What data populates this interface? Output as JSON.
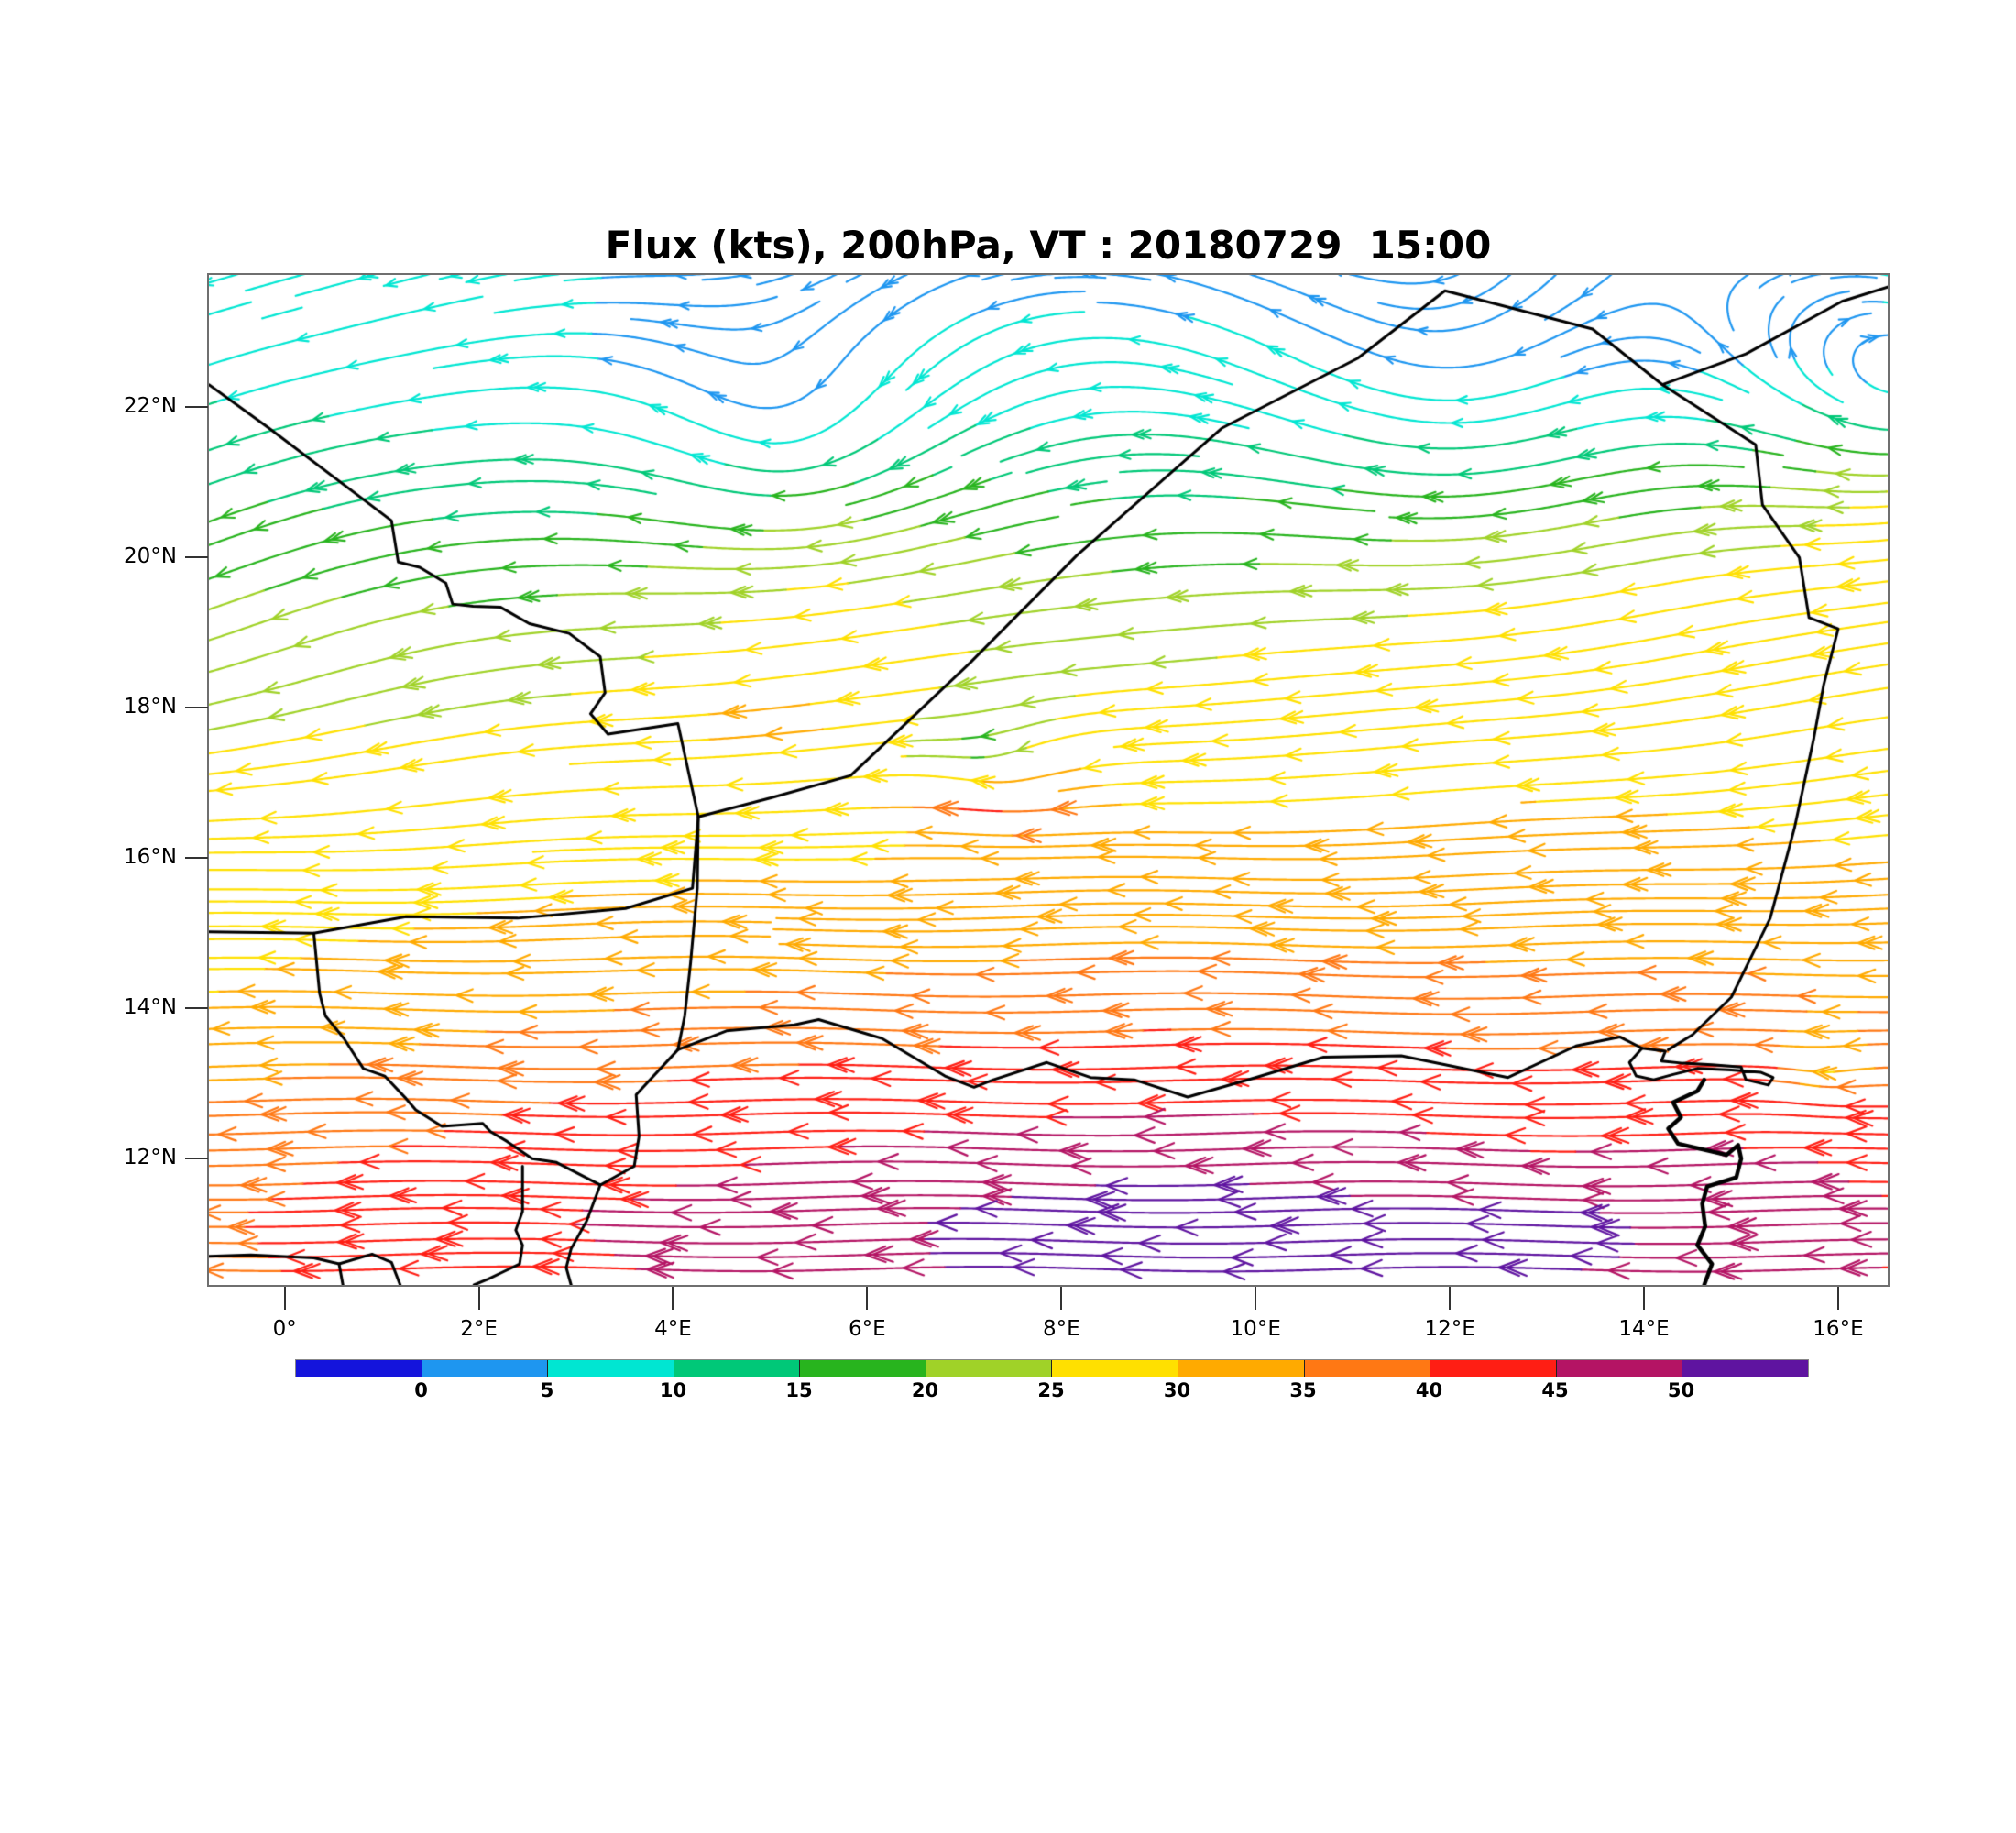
{
  "title": "Flux (kts), 200hPa, VT : 20180729  15:00",
  "chart_data": {
    "type": "streamline-map",
    "variable": "Flux",
    "units": "kts",
    "pressure_level": "200hPa",
    "valid_time": "20180729  15:00",
    "x_axis": {
      "range_lon": [
        -0.78,
        16.51
      ],
      "ticks": [
        {
          "label": "0°",
          "lon": 0
        },
        {
          "label": "2°E",
          "lon": 2
        },
        {
          "label": "4°E",
          "lon": 4
        },
        {
          "label": "6°E",
          "lon": 6
        },
        {
          "label": "8°E",
          "lon": 8
        },
        {
          "label": "10°E",
          "lon": 10
        },
        {
          "label": "12°E",
          "lon": 12
        },
        {
          "label": "14°E",
          "lon": 14
        },
        {
          "label": "16°E",
          "lon": 16
        }
      ]
    },
    "y_axis": {
      "range_lat": [
        10.32,
        23.76
      ],
      "ticks": [
        {
          "label": "12°N",
          "lat": 12
        },
        {
          "label": "14°N",
          "lat": 14
        },
        {
          "label": "16°N",
          "lat": 16
        },
        {
          "label": "18°N",
          "lat": 18
        },
        {
          "label": "20°N",
          "lat": 20
        },
        {
          "label": "22°N",
          "lat": 22
        }
      ]
    },
    "colorbar": {
      "tick_labels": [
        "0",
        "5",
        "10",
        "15",
        "20",
        "25",
        "30",
        "35",
        "40",
        "45",
        "50"
      ],
      "levels": [
        0,
        5,
        10,
        15,
        20,
        25,
        30,
        35,
        40,
        45,
        50
      ],
      "colors": [
        "#1414dc",
        "#1e96f0",
        "#00e6d2",
        "#00c878",
        "#28b41e",
        "#a0d228",
        "#ffe000",
        "#ffaa00",
        "#ff7814",
        "#ff1e14",
        "#b41464",
        "#5f14a0"
      ]
    },
    "flow_field": {
      "description": "Tropical easterly jet: westward flow strongest (40-55 kts, red/purple) along 10.5-12.5N, weakening northward to light blue/cyan (0-10 kts) near 21-24N; anticyclonic eddies over the Sahara and a small convergent eddy near 7.4E/17.1N and near Lake Chad.",
      "base_speed_profile": [
        [
          10.32,
          46
        ],
        [
          11.2,
          47
        ],
        [
          12,
          45
        ],
        [
          13,
          41
        ],
        [
          14,
          36
        ],
        [
          15,
          32
        ],
        [
          16,
          29
        ],
        [
          17,
          26
        ],
        [
          17.8,
          24
        ],
        [
          18.6,
          22
        ],
        [
          19.4,
          19
        ],
        [
          20.2,
          16
        ],
        [
          21,
          13
        ],
        [
          21.8,
          10
        ],
        [
          22.6,
          8
        ],
        [
          23.76,
          7
        ]
      ],
      "lon_speed_factor": [
        [
          -0.78,
          0.84
        ],
        [
          1,
          0.9
        ],
        [
          3,
          0.96
        ],
        [
          5,
          1.0
        ],
        [
          7,
          1.04
        ],
        [
          9,
          1.06
        ],
        [
          11,
          1.04
        ],
        [
          13,
          1.0
        ],
        [
          14.5,
          1.02
        ],
        [
          16.51,
          0.97
        ]
      ],
      "lon_factor_blend": {
        "full_below_lat": 14,
        "none_above_lat": 17
      },
      "southward_tilt": {
        "base_coeff": 0.1,
        "base_start_lat": 14.5,
        "base_full_lat": 18.5,
        "extra_coeff": 0.32,
        "extra_start_lat": 16,
        "extra_full_lat": 19,
        "west_weight_min": 0.4,
        "west_zero_lon": 6.5,
        "west_scale": 7
      },
      "waviness": {
        "amp": 0.04,
        "k_lon": 1.3,
        "k_lat": 0.9
      },
      "vortices": [
        {
          "lon": 5.3,
          "lat": 21.0,
          "rotation": "clockwise",
          "strength": 6.5,
          "core_radius": 1.3,
          "convergence": 0.15
        },
        {
          "lon": 12.3,
          "lat": 21.4,
          "rotation": "clockwise",
          "strength": 5.5,
          "core_radius": 2.2,
          "convergence": 0.05
        },
        {
          "lon": 7.4,
          "lat": 17.1,
          "rotation": "clockwise",
          "strength": 7.0,
          "core_radius": 0.45,
          "convergence": 0.55
        },
        {
          "lon": 15.85,
          "lat": 13.1,
          "rotation": "clockwise",
          "strength": 5.0,
          "core_radius": 0.3,
          "convergence": 0.5
        },
        {
          "lon": 17.0,
          "lat": 22.0,
          "rotation": "clockwise",
          "strength": 12.0,
          "core_radius": 1.4,
          "convergence": 0.0
        }
      ],
      "speed_anomalies": [
        {
          "lon": 9.3,
          "lat": 10.8,
          "amp": 8,
          "sigma_lon": 1.6,
          "sigma_lat": 0.5
        },
        {
          "lon": 12.9,
          "lat": 10.9,
          "amp": 7,
          "sigma_lon": 0.7,
          "sigma_lat": 0.35
        },
        {
          "lon": 6.9,
          "lat": 16.75,
          "amp": 11,
          "sigma_lon": 0.45,
          "sigma_lat": 0.18
        },
        {
          "lon": 15.25,
          "lat": 13.2,
          "amp": 7,
          "sigma_lon": 0.45,
          "sigma_lat": 0.15
        },
        {
          "lon": 15.9,
          "lat": 13.1,
          "amp": -12,
          "sigma_lon": 0.4,
          "sigma_lat": 0.25
        },
        {
          "lon": 4.8,
          "lat": 17.8,
          "amp": 4,
          "sigma_lon": 1.0,
          "sigma_lat": 0.5
        }
      ]
    },
    "map_borders": [
      {
        "name": "algeria-mali",
        "weight": 3,
        "pts": [
          [
            -0.78,
            22.3
          ],
          [
            -0.16,
            21.72
          ],
          [
            1.1,
            20.49
          ],
          [
            1.17,
            19.94
          ],
          [
            1.39,
            19.87
          ],
          [
            1.66,
            19.66
          ],
          [
            1.73,
            19.38
          ],
          [
            1.94,
            19.35
          ],
          [
            2.22,
            19.34
          ],
          [
            2.52,
            19.12
          ],
          [
            2.93,
            18.99
          ],
          [
            3.25,
            18.68
          ],
          [
            3.3,
            18.2
          ],
          [
            3.15,
            17.92
          ],
          [
            3.33,
            17.65
          ],
          [
            4.05,
            17.79
          ],
          [
            4.26,
            16.55
          ]
        ]
      },
      {
        "name": "niger-algeria-libya",
        "weight": 3,
        "pts": [
          [
            4.26,
            16.55
          ],
          [
            5.0,
            16.8
          ],
          [
            5.83,
            17.1
          ],
          [
            7.06,
            18.6
          ],
          [
            8.16,
            20.03
          ],
          [
            9.65,
            21.72
          ],
          [
            11.05,
            22.65
          ],
          [
            11.95,
            23.55
          ],
          [
            13.47,
            23.04
          ],
          [
            14.19,
            22.3
          ],
          [
            15.05,
            22.71
          ],
          [
            16.04,
            23.41
          ],
          [
            16.51,
            23.6
          ]
        ]
      },
      {
        "name": "niger-chad",
        "weight": 3,
        "pts": [
          [
            14.19,
            22.3
          ],
          [
            15.15,
            21.5
          ],
          [
            15.22,
            20.7
          ],
          [
            15.6,
            20.0
          ],
          [
            15.7,
            19.2
          ],
          [
            16.0,
            19.05
          ],
          [
            15.85,
            18.3
          ],
          [
            15.75,
            17.6
          ],
          [
            15.55,
            16.4
          ],
          [
            15.3,
            15.2
          ],
          [
            14.9,
            14.15
          ],
          [
            14.5,
            13.65
          ],
          [
            14.25,
            13.45
          ]
        ]
      },
      {
        "name": "mali-burkina",
        "weight": 3,
        "pts": [
          [
            -0.78,
            15.02
          ],
          [
            0.3,
            15.0
          ],
          [
            1.25,
            15.22
          ],
          [
            2.4,
            15.2
          ],
          [
            3.51,
            15.33
          ],
          [
            4.2,
            15.6
          ],
          [
            4.26,
            16.55
          ]
        ]
      },
      {
        "name": "mali-niger-east",
        "weight": 3,
        "pts": [
          [
            4.26,
            16.55
          ],
          [
            4.25,
            15.6
          ],
          [
            4.18,
            14.6
          ],
          [
            4.12,
            13.9
          ],
          [
            4.05,
            13.45
          ]
        ]
      },
      {
        "name": "burkina-niger",
        "weight": 3,
        "pts": [
          [
            0.3,
            15.0
          ],
          [
            0.36,
            14.2
          ],
          [
            0.42,
            13.9
          ],
          [
            0.61,
            13.6
          ],
          [
            0.81,
            13.2
          ],
          [
            1.03,
            13.1
          ],
          [
            1.25,
            12.8
          ],
          [
            1.35,
            12.65
          ],
          [
            1.62,
            12.43
          ],
          [
            2.04,
            12.47
          ],
          [
            2.12,
            12.36
          ],
          [
            2.29,
            12.23
          ],
          [
            2.55,
            12.0
          ],
          [
            2.8,
            11.95
          ],
          [
            3.25,
            11.65
          ]
        ]
      },
      {
        "name": "niger-nigeria",
        "weight": 3,
        "pts": [
          [
            3.25,
            11.65
          ],
          [
            3.6,
            11.9
          ],
          [
            3.65,
            12.3
          ],
          [
            3.62,
            12.85
          ],
          [
            4.05,
            13.45
          ],
          [
            4.55,
            13.7
          ],
          [
            5.25,
            13.78
          ],
          [
            5.5,
            13.85
          ],
          [
            6.15,
            13.6
          ],
          [
            6.8,
            13.1
          ],
          [
            7.1,
            12.95
          ],
          [
            7.3,
            13.05
          ],
          [
            7.85,
            13.28
          ],
          [
            8.3,
            13.08
          ],
          [
            8.75,
            13.05
          ],
          [
            9.3,
            12.82
          ],
          [
            10.0,
            13.08
          ],
          [
            10.7,
            13.35
          ],
          [
            11.5,
            13.37
          ],
          [
            12.6,
            13.08
          ],
          [
            13.3,
            13.5
          ],
          [
            13.75,
            13.62
          ],
          [
            13.98,
            13.47
          ]
        ]
      },
      {
        "name": "nigeria-benin",
        "weight": 3,
        "pts": [
          [
            3.25,
            11.65
          ],
          [
            3.11,
            11.17
          ],
          [
            2.95,
            10.8
          ],
          [
            2.9,
            10.55
          ],
          [
            2.95,
            10.32
          ]
        ]
      },
      {
        "name": "benin-togo",
        "weight": 3,
        "pts": [
          [
            2.45,
            11.9
          ],
          [
            2.45,
            11.3
          ],
          [
            2.38,
            11.05
          ],
          [
            2.45,
            10.85
          ],
          [
            2.42,
            10.6
          ],
          [
            2.26,
            10.5
          ],
          [
            2.1,
            10.4
          ],
          [
            1.95,
            10.32
          ]
        ]
      },
      {
        "name": "ghana-burkina",
        "weight": 3,
        "pts": [
          [
            -0.78,
            10.7
          ],
          [
            -0.35,
            10.72
          ],
          [
            0.3,
            10.68
          ],
          [
            0.56,
            10.6
          ],
          [
            0.9,
            10.73
          ],
          [
            1.1,
            10.62
          ],
          [
            1.19,
            10.32
          ]
        ]
      },
      {
        "name": "ghana-togo",
        "weight": 3,
        "pts": [
          [
            0.56,
            10.6
          ],
          [
            0.6,
            10.32
          ]
        ]
      },
      {
        "name": "lake-chad",
        "weight": 3,
        "pts": [
          [
            13.98,
            13.47
          ],
          [
            14.22,
            13.43
          ],
          [
            14.18,
            13.3
          ],
          [
            14.4,
            13.27
          ],
          [
            14.7,
            13.25
          ],
          [
            15.0,
            13.22
          ],
          [
            15.05,
            13.05
          ],
          [
            15.28,
            12.98
          ],
          [
            15.33,
            13.08
          ],
          [
            15.2,
            13.15
          ],
          [
            14.9,
            13.18
          ],
          [
            14.55,
            13.2
          ],
          [
            14.3,
            13.12
          ],
          [
            14.1,
            13.05
          ],
          [
            13.92,
            13.1
          ],
          [
            13.85,
            13.28
          ],
          [
            13.98,
            13.47
          ]
        ]
      },
      {
        "name": "nigeria-cameroon",
        "weight": 4.5,
        "pts": [
          [
            14.62,
            13.05
          ],
          [
            14.55,
            12.9
          ],
          [
            14.3,
            12.75
          ],
          [
            14.38,
            12.55
          ],
          [
            14.25,
            12.4
          ],
          [
            14.35,
            12.2
          ],
          [
            14.85,
            12.05
          ],
          [
            14.97,
            12.18
          ],
          [
            15.0,
            12.0
          ],
          [
            14.95,
            11.75
          ],
          [
            14.65,
            11.63
          ],
          [
            14.6,
            11.4
          ],
          [
            14.63,
            11.1
          ],
          [
            14.55,
            10.85
          ],
          [
            14.7,
            10.6
          ],
          [
            14.62,
            10.32
          ]
        ]
      }
    ]
  }
}
